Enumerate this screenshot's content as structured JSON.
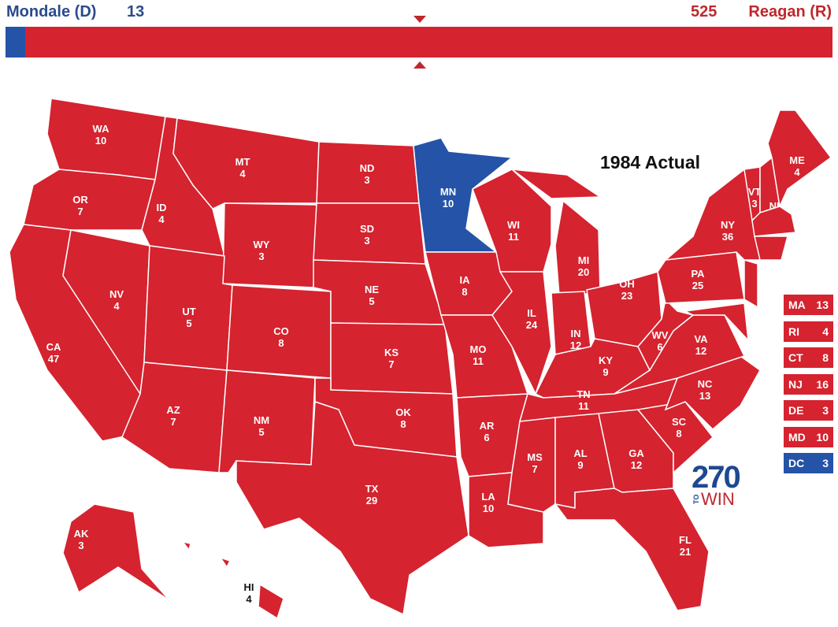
{
  "header": {
    "dem_label": "Mondale (D)",
    "dem_ev": "13",
    "rep_ev": "525",
    "rep_label": "Reagan (R)",
    "dem_share_of_538": 0.024
  },
  "map_title": "1984 Actual",
  "colors": {
    "dem": "#2453a8",
    "rep": "#d5232f"
  },
  "states": [
    {
      "abbr": "WA",
      "ev": "10",
      "winner": "R"
    },
    {
      "abbr": "OR",
      "ev": "7",
      "winner": "R"
    },
    {
      "abbr": "CA",
      "ev": "47",
      "winner": "R"
    },
    {
      "abbr": "NV",
      "ev": "4",
      "winner": "R"
    },
    {
      "abbr": "ID",
      "ev": "4",
      "winner": "R"
    },
    {
      "abbr": "MT",
      "ev": "4",
      "winner": "R"
    },
    {
      "abbr": "WY",
      "ev": "3",
      "winner": "R"
    },
    {
      "abbr": "UT",
      "ev": "5",
      "winner": "R"
    },
    {
      "abbr": "AZ",
      "ev": "7",
      "winner": "R"
    },
    {
      "abbr": "CO",
      "ev": "8",
      "winner": "R"
    },
    {
      "abbr": "NM",
      "ev": "5",
      "winner": "R"
    },
    {
      "abbr": "ND",
      "ev": "3",
      "winner": "R"
    },
    {
      "abbr": "SD",
      "ev": "3",
      "winner": "R"
    },
    {
      "abbr": "NE",
      "ev": "5",
      "winner": "R"
    },
    {
      "abbr": "KS",
      "ev": "7",
      "winner": "R"
    },
    {
      "abbr": "OK",
      "ev": "8",
      "winner": "R"
    },
    {
      "abbr": "TX",
      "ev": "29",
      "winner": "R"
    },
    {
      "abbr": "MN",
      "ev": "10",
      "winner": "D"
    },
    {
      "abbr": "IA",
      "ev": "8",
      "winner": "R"
    },
    {
      "abbr": "MO",
      "ev": "11",
      "winner": "R"
    },
    {
      "abbr": "AR",
      "ev": "6",
      "winner": "R"
    },
    {
      "abbr": "LA",
      "ev": "10",
      "winner": "R"
    },
    {
      "abbr": "WI",
      "ev": "11",
      "winner": "R"
    },
    {
      "abbr": "IL",
      "ev": "24",
      "winner": "R"
    },
    {
      "abbr": "MI",
      "ev": "20",
      "winner": "R"
    },
    {
      "abbr": "IN",
      "ev": "12",
      "winner": "R"
    },
    {
      "abbr": "OH",
      "ev": "23",
      "winner": "R"
    },
    {
      "abbr": "KY",
      "ev": "9",
      "winner": "R"
    },
    {
      "abbr": "TN",
      "ev": "11",
      "winner": "R"
    },
    {
      "abbr": "MS",
      "ev": "7",
      "winner": "R"
    },
    {
      "abbr": "AL",
      "ev": "9",
      "winner": "R"
    },
    {
      "abbr": "GA",
      "ev": "12",
      "winner": "R"
    },
    {
      "abbr": "FL",
      "ev": "21",
      "winner": "R"
    },
    {
      "abbr": "SC",
      "ev": "8",
      "winner": "R"
    },
    {
      "abbr": "NC",
      "ev": "13",
      "winner": "R"
    },
    {
      "abbr": "VA",
      "ev": "12",
      "winner": "R"
    },
    {
      "abbr": "WV",
      "ev": "6",
      "winner": "R"
    },
    {
      "abbr": "PA",
      "ev": "25",
      "winner": "R"
    },
    {
      "abbr": "NY",
      "ev": "36",
      "winner": "R"
    },
    {
      "abbr": "VT",
      "ev": "3",
      "winner": "R"
    },
    {
      "abbr": "NH",
      "ev": "4",
      "winner": "R"
    },
    {
      "abbr": "ME",
      "ev": "4",
      "winner": "R"
    },
    {
      "abbr": "AK",
      "ev": "3",
      "winner": "R"
    },
    {
      "abbr": "HI",
      "ev": "4",
      "winner": "R"
    }
  ],
  "small_states": [
    {
      "abbr": "MA",
      "ev": "13",
      "winner": "R"
    },
    {
      "abbr": "RI",
      "ev": "4",
      "winner": "R"
    },
    {
      "abbr": "CT",
      "ev": "8",
      "winner": "R"
    },
    {
      "abbr": "NJ",
      "ev": "16",
      "winner": "R"
    },
    {
      "abbr": "DE",
      "ev": "3",
      "winner": "R"
    },
    {
      "abbr": "MD",
      "ev": "10",
      "winner": "R"
    },
    {
      "abbr": "DC",
      "ev": "3",
      "winner": "D"
    }
  ],
  "logo": {
    "number": "270",
    "to": "TO",
    "win": "WIN"
  }
}
